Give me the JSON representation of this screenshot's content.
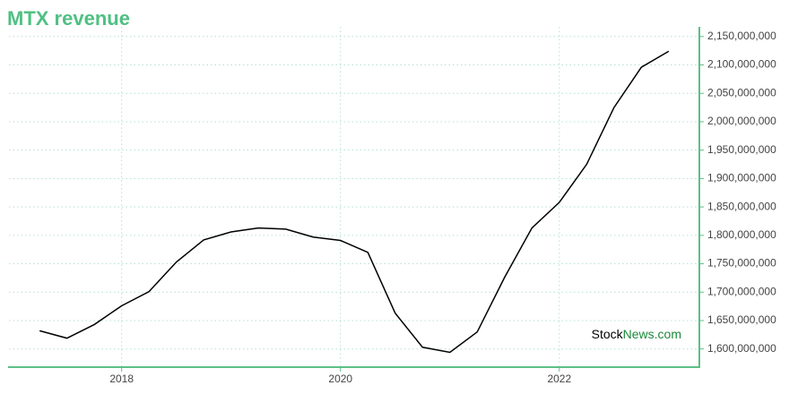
{
  "chart_data": {
    "type": "line",
    "title": "MTX revenue",
    "x": [
      2017.25,
      2017.5,
      2017.75,
      2018.0,
      2018.25,
      2018.5,
      2018.75,
      2019.0,
      2019.25,
      2019.5,
      2019.75,
      2020.0,
      2020.25,
      2020.5,
      2020.75,
      2021.0,
      2021.25,
      2021.5,
      2021.75,
      2022.0,
      2022.25,
      2022.5,
      2022.75,
      2023.0
    ],
    "series": [
      {
        "name": "MTX revenue",
        "color": "#000000",
        "values": [
          1632000000,
          1619000000,
          1643000000,
          1676000000,
          1701000000,
          1753000000,
          1792000000,
          1806000000,
          1813000000,
          1811000000,
          1797000000,
          1791000000,
          1770000000,
          1663000000,
          1603000000,
          1594000000,
          1630000000,
          1726000000,
          1813000000,
          1858000000,
          1925000000,
          2025000000,
          2096000000,
          2124000000
        ]
      }
    ],
    "xlim": [
      2016.97,
      2023.28
    ],
    "xticks": [
      2018,
      2020,
      2022
    ],
    "ylim": [
      1568000000,
      2167000000
    ],
    "yticks": [
      {
        "value": 1600000000,
        "label": "1,600,000,000"
      },
      {
        "value": 1650000000,
        "label": "1,650,000,000"
      },
      {
        "value": 1700000000,
        "label": "1,700,000,000"
      },
      {
        "value": 1750000000,
        "label": "1,750,000,000"
      },
      {
        "value": 1800000000,
        "label": "1,800,000,000"
      },
      {
        "value": 1850000000,
        "label": "1,850,000,000"
      },
      {
        "value": 1900000000,
        "label": "1,900,000,000"
      },
      {
        "value": 1950000000,
        "label": "1,950,000,000"
      },
      {
        "value": 2000000000,
        "label": "2,000,000,000"
      },
      {
        "value": 2050000000,
        "label": "2,050,000,000"
      },
      {
        "value": 2100000000,
        "label": "2,100,000,000"
      },
      {
        "value": 2150000000,
        "label": "2,150,000,000"
      }
    ],
    "grid": true,
    "watermark": [
      "Stock",
      "News.com"
    ]
  }
}
